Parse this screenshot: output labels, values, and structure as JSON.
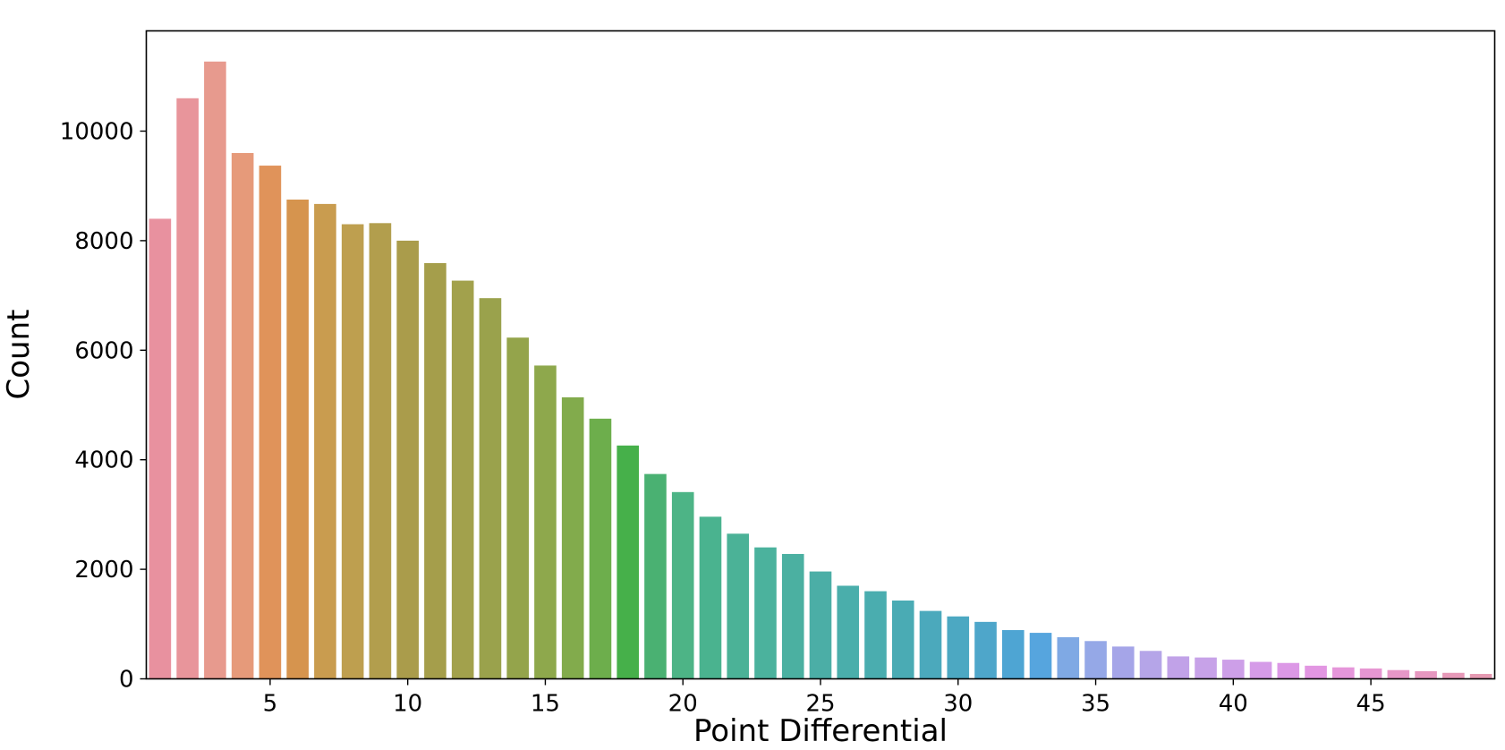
{
  "chart_data": {
    "type": "bar",
    "title": "",
    "xlabel": "Point Differential",
    "ylabel": "Count",
    "categories": [
      1,
      2,
      3,
      4,
      5,
      6,
      7,
      8,
      9,
      10,
      11,
      12,
      13,
      14,
      15,
      16,
      17,
      18,
      19,
      20,
      21,
      22,
      23,
      24,
      25,
      26,
      27,
      28,
      29,
      30,
      31,
      32,
      33,
      34,
      35,
      36,
      37,
      38,
      39,
      40,
      41,
      42,
      43,
      44,
      45,
      46,
      47,
      48,
      49
    ],
    "values": [
      8400,
      10600,
      11270,
      9600,
      9370,
      8750,
      8670,
      8300,
      8320,
      8000,
      7590,
      7270,
      6950,
      6230,
      5720,
      5140,
      4750,
      4260,
      3740,
      3410,
      2960,
      2650,
      2400,
      2280,
      1960,
      1700,
      1600,
      1430,
      1240,
      1140,
      1040,
      890,
      840,
      760,
      690,
      590,
      510,
      410,
      390,
      350,
      310,
      290,
      240,
      210,
      190,
      160,
      140,
      110,
      90
    ],
    "colors": [
      "#e8919f",
      "#e8959b",
      "#e79a8e",
      "#e69a7a",
      "#e0935a",
      "#d6944e",
      "#c99c4f",
      "#be9f4f",
      "#b29e4d",
      "#aa9c4b",
      "#a59e4b",
      "#a2a14c",
      "#9aa24c",
      "#94a44b",
      "#8ea84c",
      "#82ab4c",
      "#6dae4c",
      "#46b04a",
      "#4ab172",
      "#4db486",
      "#4ab38f",
      "#4bb297",
      "#4bb29d",
      "#4bb0a1",
      "#4baea6",
      "#4aaeab",
      "#4aadaf",
      "#4aabb4",
      "#4ba9bc",
      "#4ca8c2",
      "#4ea6ca",
      "#4ea5d3",
      "#56a5de",
      "#7fa9e4",
      "#95a8e7",
      "#a5a5e8",
      "#b5a5e8",
      "#c1a2e8",
      "#c7a2e8",
      "#cd9fe8",
      "#d59be8",
      "#dc98e6",
      "#e296e2",
      "#e596da",
      "#e696d2",
      "#e697c8",
      "#e698c0",
      "#e699b8",
      "#e59ab2"
    ],
    "xticks": [
      5,
      10,
      15,
      20,
      25,
      30,
      35,
      40,
      45
    ],
    "yticks": [
      0,
      2000,
      4000,
      6000,
      8000,
      10000
    ],
    "ylim": [
      0,
      11830
    ],
    "xlim": [
      0.5,
      49.5
    ],
    "grid": false,
    "legend": "none"
  }
}
